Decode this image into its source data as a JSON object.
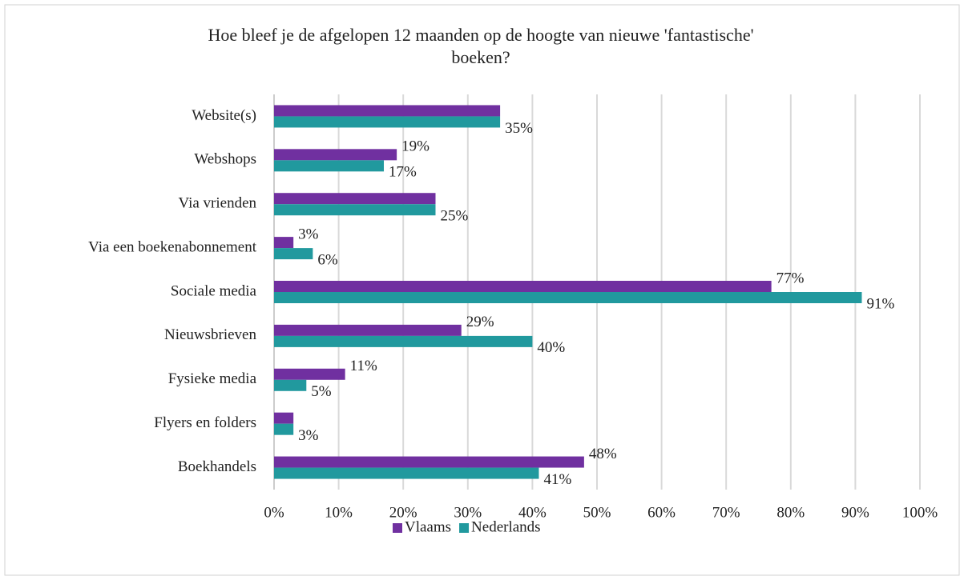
{
  "chart_data": {
    "type": "hbar",
    "title": "Hoe bleef je de afgelopen 12 maanden op de hoogte van nieuwe 'fantastische' boeken?",
    "categories": [
      "Website(s)",
      "Webshops",
      "Via vrienden",
      "Via een boekenabonnement",
      "Sociale media",
      "Nieuwsbrieven",
      "Fysieke media",
      "Flyers en folders",
      "Boekhandels"
    ],
    "series": [
      {
        "name": "Vlaams",
        "color": "#7030a0",
        "values": [
          35,
          19,
          25,
          3,
          77,
          29,
          11,
          3,
          48
        ],
        "value_labels": [
          null,
          "19%",
          null,
          "3%",
          "77%",
          "29%",
          "11%",
          null,
          "48%"
        ]
      },
      {
        "name": "Nederlands",
        "color": "#21999e",
        "values": [
          35,
          17,
          25,
          6,
          91,
          40,
          5,
          3,
          41
        ],
        "value_labels": [
          "35%",
          "17%",
          "25%",
          "6%",
          "91%",
          "40%",
          "5%",
          "3%",
          "41%"
        ]
      }
    ],
    "xlim": [
      0,
      100
    ],
    "xticks": [
      {
        "value": 0,
        "label": "0%"
      },
      {
        "value": 10,
        "label": "10%"
      },
      {
        "value": 20,
        "label": "20%"
      },
      {
        "value": 30,
        "label": "30%"
      },
      {
        "value": 40,
        "label": "40%"
      },
      {
        "value": 50,
        "label": "50%"
      },
      {
        "value": 60,
        "label": "60%"
      },
      {
        "value": 70,
        "label": "70%"
      },
      {
        "value": 80,
        "label": "80%"
      },
      {
        "value": 90,
        "label": "90%"
      },
      {
        "value": 100,
        "label": "100%"
      }
    ],
    "grid": true,
    "legend": "bottom"
  }
}
